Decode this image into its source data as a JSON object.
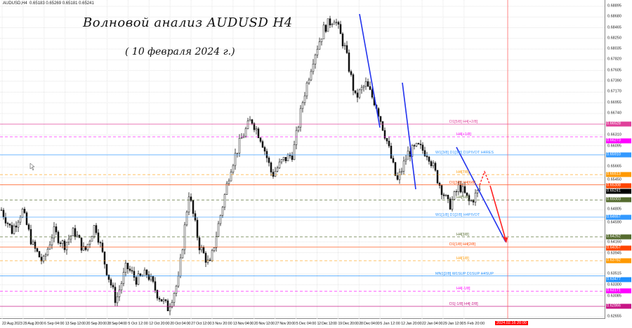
{
  "header": {
    "symbol": "AUDUSD,H4",
    "ohlc": "0.65183 0.65269 0.65181 0.65241"
  },
  "title": "Волновой анализ AUDUSD H4",
  "subtitle": "( 10 февраля 2024 г.)",
  "chart_data": {
    "type": "candlestick",
    "symbol": "AUDUSD",
    "timeframe": "H4",
    "ylim": [
      0.62655,
      0.68895
    ],
    "grid": true,
    "y_ticks": [
      "0.68895",
      "0.68680",
      "0.68465",
      "0.68250",
      "0.68035",
      "0.67820",
      "0.67605",
      "0.67390",
      "0.67170",
      "0.66955",
      "0.66740",
      "0.66310",
      "0.66095",
      "0.65665",
      "0.65450",
      "0.64805",
      "0.64590",
      "0.64160",
      "0.63945",
      "0.63515",
      "0.63300",
      "0.63085",
      "0.62655"
    ],
    "x_ticks": [
      "22 Aug 2023",
      "29 Aug 20:00",
      "6 Sep 04:00",
      "13 Sep 12:00",
      "20 Sep 20:00",
      "28 Sep 04:00",
      "5 Oct 12:00",
      "12 Oct 20:00",
      "20 Oct 04:00",
      "27 Oct 12:00",
      "3 Nov 20:00",
      "13 Nov 04:00",
      "20 Nov 12:00",
      "27 Nov 20:00",
      "5 Dec 04:00",
      "12 Dec 12:00",
      "19 Dec 20:00",
      "28 Dec 04:00",
      "5 Jan 12:00",
      "12 Jan 20:00",
      "22 Jan 04:00",
      "29 Jan 12:00",
      "5 Feb 20:00"
    ],
    "current_time_label": "2024.02.16 20:00",
    "current_price": {
      "value": "0.65241",
      "color": "#000000"
    },
    "price_path_approx": [
      0.648,
      0.6438,
      0.648,
      0.6409,
      0.6374,
      0.6438,
      0.6409,
      0.6438,
      0.6395,
      0.6452,
      0.6367,
      0.6297,
      0.6367,
      0.6339,
      0.6353,
      0.6311,
      0.6283,
      0.6339,
      0.6515,
      0.6409,
      0.6367,
      0.6466,
      0.6564,
      0.6621,
      0.6663,
      0.6621,
      0.655,
      0.6579,
      0.6593,
      0.6705,
      0.6789,
      0.6846,
      0.6867,
      0.6804,
      0.6705,
      0.6733,
      0.6691,
      0.6621,
      0.6536,
      0.6593,
      0.6607,
      0.6593,
      0.6536,
      0.6487,
      0.6529,
      0.6494,
      0.6524
    ],
    "levels": [
      {
        "price": "0.66528",
        "label": "D1[5/8] H4[+2/8]",
        "color": "#e0409a",
        "style": "solid"
      },
      {
        "price": "0.66273",
        "label": "H4[+1/8]",
        "color": "#ff00ff",
        "style": "dashed"
      },
      {
        "price": "0.65910",
        "label": "W1[3/8] D1[3/8] D1PIVOT H4RES",
        "color": "#3399ff",
        "style": "solid"
      },
      {
        "price": "0.65513",
        "label": "H4[7/8]",
        "color": "#ff9900",
        "style": "dashed"
      },
      {
        "price": "0.65308",
        "label": "D1[3/8] H4[6/8]",
        "color": "#ff4500",
        "style": "solid"
      },
      {
        "price": "0.65003",
        "label": "H4[5/8]",
        "color": "#556b2f",
        "style": "dashed"
      },
      {
        "price": "0.64657",
        "label": "W1[1/8] D1[2/8] H4PIVOT",
        "color": "#3399ff",
        "style": "solid"
      },
      {
        "price": "0.64262",
        "label": "H4[3/8]",
        "color": "#556b2f",
        "style": "dashed"
      },
      {
        "price": "0.64057",
        "label": "D1[1/8] H4[2/8]",
        "color": "#ff4500",
        "style": "solid"
      },
      {
        "price": "0.63782",
        "label": "H4[1/8]",
        "color": "#ff9900",
        "style": "dashed"
      },
      {
        "price": "0.63477",
        "label": "MN1[2/8] W1SUP D1SUP H4SUP",
        "color": "#1e90ff",
        "style": "solid"
      },
      {
        "price": "0.63171",
        "label": "H4[-1/8]",
        "color": "#ff00ff",
        "style": "dashed"
      },
      {
        "price": "0.62866",
        "label": "D1[-1/8] H4[-2/8]",
        "color": "#c71585",
        "style": "solid"
      }
    ],
    "wave_colors": {
      "wave": "#2233ee",
      "forecast": "#ff2222"
    }
  }
}
